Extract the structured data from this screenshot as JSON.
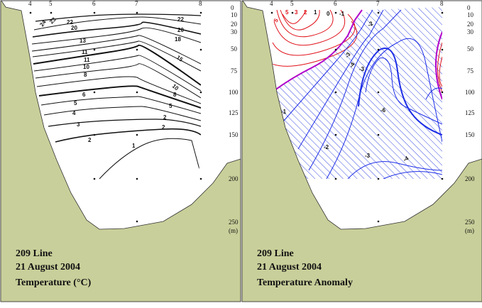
{
  "stations": [
    "4",
    "5",
    "6",
    "7",
    "8"
  ],
  "depth_labels": [
    "0",
    "10",
    "20",
    "30",
    "50",
    "75",
    "100",
    "125",
    "150",
    "200",
    "250"
  ],
  "depth_unit": "(m)",
  "colors": {
    "land": "#c9cf9a",
    "warm_anomaly": "#e0141c",
    "cold_anomaly": "#1e2ee6",
    "zero_anomaly": "#b000c8",
    "hatch": "#3a4ce0"
  },
  "left_panel": {
    "line": "209 Line",
    "date": "21 August 2004",
    "variable_prefix": "Temperature (",
    "variable_unit": "°C)",
    "contours": [
      {
        "value": 24,
        "label": "24"
      },
      {
        "value": 23,
        "label": "23"
      },
      {
        "value": 22,
        "label": "22"
      },
      {
        "value": 20,
        "label": "20"
      },
      {
        "value": 18,
        "label": "18"
      },
      {
        "value": 15,
        "label": "15"
      },
      {
        "value": 13,
        "label": "13"
      },
      {
        "value": 11,
        "label": "11"
      },
      {
        "value": 10,
        "label": "10"
      },
      {
        "value": 8,
        "label": "8"
      },
      {
        "value": 6,
        "label": "6"
      },
      {
        "value": 5,
        "label": "5"
      },
      {
        "value": 4,
        "label": "4"
      },
      {
        "value": 3,
        "label": "3"
      },
      {
        "value": 2,
        "label": "2"
      },
      {
        "value": 1,
        "label": "1"
      }
    ]
  },
  "right_panel": {
    "line": "209 Line",
    "date": "21 August 2004",
    "variable": "Temperature Anomaly",
    "anomaly_labels": [
      "5",
      "3",
      "2",
      "1",
      "0",
      "-1",
      "-2",
      "-3",
      "-4",
      "-5",
      "-6"
    ]
  }
}
